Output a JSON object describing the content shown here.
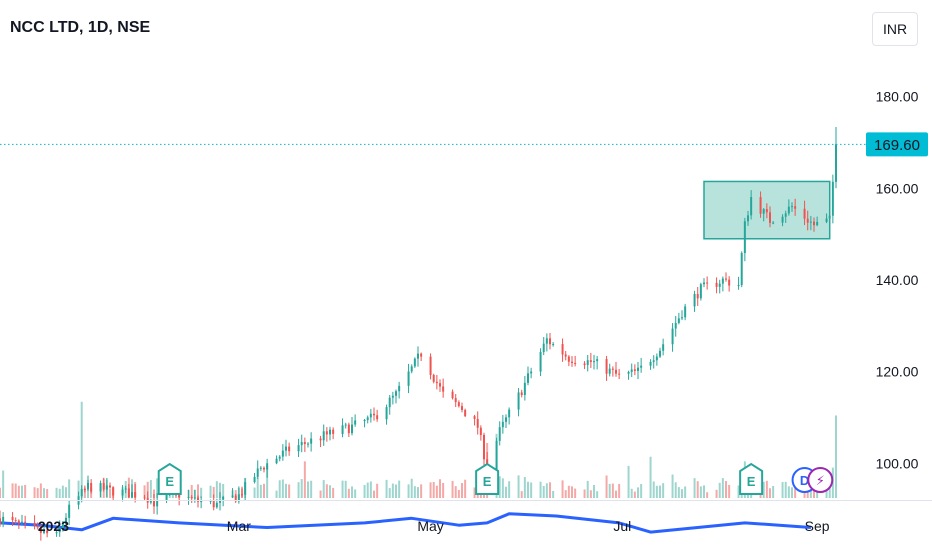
{
  "header": {
    "title": "NCC LTD, 1D, NSE",
    "currency": "INR"
  },
  "colors": {
    "up": "#26a69a",
    "down": "#ef5350",
    "upVol": "#9ed6cf",
    "downVol": "#f4a9a7",
    "ma": "#2962ff",
    "box": "#9fdad0",
    "boxStroke": "#26a69a",
    "lastPrice": "#00bcd4",
    "earnings": "#26a69a",
    "dividend": "#2962ff",
    "split": "#9c27b0"
  },
  "chart_data": {
    "type": "candlestick",
    "title": "NCC LTD, 1D, NSE",
    "price_axis": {
      "range": [
        92,
        188
      ],
      "ticks": [
        {
          "value": 180,
          "label": "180.00"
        },
        {
          "value": 160,
          "label": "160.00"
        },
        {
          "value": 140,
          "label": "140.00"
        },
        {
          "value": 120,
          "label": "120.00"
        },
        {
          "value": 100,
          "label": "100.00"
        }
      ]
    },
    "time_axis": {
      "range": [
        "2022-12-15",
        "2023-09-14"
      ],
      "ticks": [
        {
          "date": "2023-01-01",
          "label": "2023",
          "bold": true
        },
        {
          "date": "2023-03-01",
          "label": "Mar",
          "bold": false
        },
        {
          "date": "2023-05-01",
          "label": "May",
          "bold": false
        },
        {
          "date": "2023-07-01",
          "label": "Jul",
          "bold": false
        },
        {
          "date": "2023-09-01",
          "label": "Sep",
          "bold": false
        }
      ]
    },
    "last_price": {
      "value": 169.6,
      "label": "169.60"
    },
    "consolidation_box": {
      "start": "2023-07-27",
      "end": "2023-09-05",
      "high": 161.5,
      "low": 149
    },
    "price_path": [
      [
        "2022-12-15",
        88
      ],
      [
        "2022-12-23",
        86
      ],
      [
        "2023-01-02",
        84
      ],
      [
        "2023-01-06",
        90
      ],
      [
        "2023-01-12",
        95
      ],
      [
        "2023-01-20",
        94
      ],
      [
        "2023-01-30",
        93
      ],
      [
        "2023-02-03",
        91
      ],
      [
        "2023-02-08",
        94
      ],
      [
        "2023-02-14",
        92
      ],
      [
        "2023-02-22",
        91
      ],
      [
        "2023-03-01",
        93
      ],
      [
        "2023-03-08",
        99
      ],
      [
        "2023-03-17",
        103
      ],
      [
        "2023-03-28",
        106
      ],
      [
        "2023-04-06",
        108
      ],
      [
        "2023-04-13",
        110
      ],
      [
        "2023-04-20",
        115
      ],
      [
        "2023-04-28",
        124
      ],
      [
        "2023-05-05",
        115
      ],
      [
        "2023-05-11",
        112
      ],
      [
        "2023-05-16",
        108
      ],
      [
        "2023-05-19",
        99
      ],
      [
        "2023-05-23",
        107
      ],
      [
        "2023-05-30",
        116
      ],
      [
        "2023-06-07",
        127
      ],
      [
        "2023-06-14",
        123
      ],
      [
        "2023-06-22",
        122
      ],
      [
        "2023-06-30",
        119
      ],
      [
        "2023-07-06",
        120
      ],
      [
        "2023-07-13",
        125
      ],
      [
        "2023-07-20",
        133
      ],
      [
        "2023-07-26",
        138
      ],
      [
        "2023-08-02",
        140
      ],
      [
        "2023-08-07",
        139
      ],
      [
        "2023-08-09",
        152
      ],
      [
        "2023-08-11",
        158
      ],
      [
        "2023-08-17",
        153
      ],
      [
        "2023-08-24",
        156
      ],
      [
        "2023-08-31",
        152
      ],
      [
        "2023-09-05",
        153
      ],
      [
        "2023-09-07",
        169.6
      ]
    ],
    "volume": {
      "base_axis_price": 84,
      "typical_bar_height_price_units": 3,
      "spikes": [
        {
          "date": "2022-12-16",
          "size": 6
        },
        {
          "date": "2023-01-10",
          "size": 21
        },
        {
          "date": "2023-03-10",
          "size": 7
        },
        {
          "date": "2023-03-22",
          "size": 8
        },
        {
          "date": "2023-05-19",
          "size": 12
        },
        {
          "date": "2023-05-22",
          "size": 14
        },
        {
          "date": "2023-07-03",
          "size": 7
        },
        {
          "date": "2023-07-10",
          "size": 9
        },
        {
          "date": "2023-08-09",
          "size": 8
        },
        {
          "date": "2023-09-07",
          "size": 18
        }
      ]
    },
    "volume_ma": [
      [
        "2022-12-15",
        87
      ],
      [
        "2022-12-28",
        86.5
      ],
      [
        "2023-01-10",
        85.5
      ],
      [
        "2023-01-20",
        88
      ],
      [
        "2023-02-10",
        87
      ],
      [
        "2023-03-10",
        86
      ],
      [
        "2023-04-10",
        87
      ],
      [
        "2023-04-25",
        88
      ],
      [
        "2023-05-10",
        86.5
      ],
      [
        "2023-05-19",
        87
      ],
      [
        "2023-05-26",
        89
      ],
      [
        "2023-06-10",
        88.5
      ],
      [
        "2023-06-30",
        87
      ],
      [
        "2023-07-10",
        85
      ],
      [
        "2023-07-25",
        86
      ],
      [
        "2023-08-09",
        87
      ],
      [
        "2023-08-20",
        86.5
      ],
      [
        "2023-08-30",
        86
      ]
    ],
    "events": [
      {
        "date": "2023-02-07",
        "type": "earnings",
        "label": "E"
      },
      {
        "date": "2023-05-19",
        "type": "earnings",
        "label": "E"
      },
      {
        "date": "2023-08-11",
        "type": "earnings",
        "label": "E"
      },
      {
        "date": "2023-08-28",
        "type": "dividend",
        "label": "D"
      },
      {
        "date": "2023-09-02",
        "type": "split",
        "label": "⚡"
      }
    ]
  }
}
